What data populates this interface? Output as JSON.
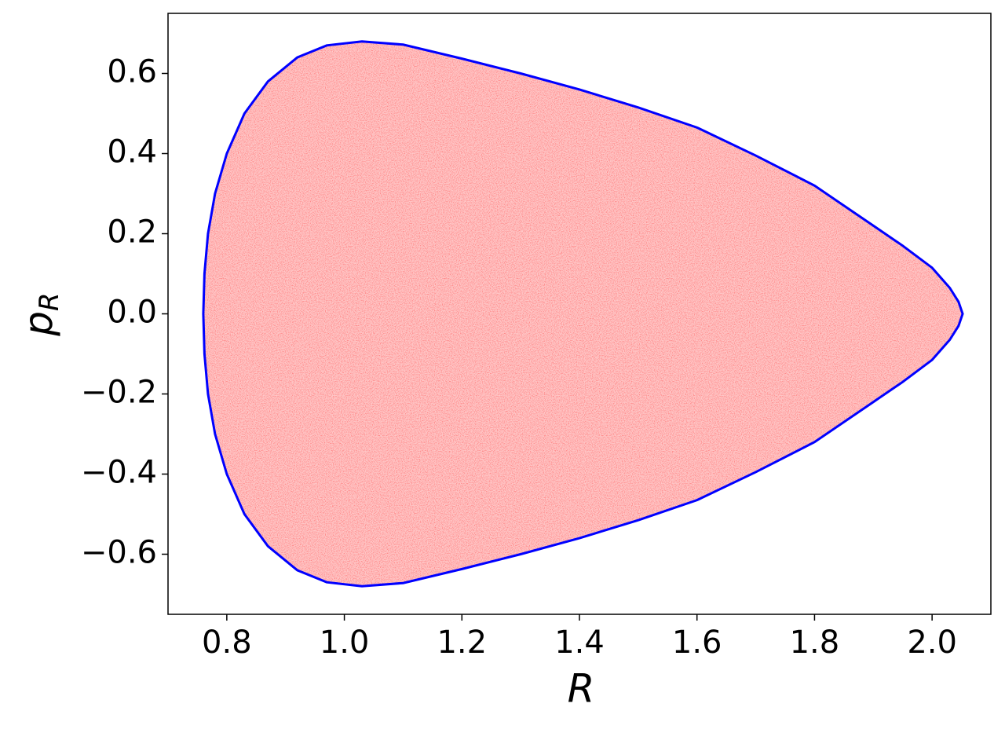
{
  "chart_data": {
    "type": "line",
    "xlabel": "R",
    "ylabel": "p",
    "ylabel_subscript": "R",
    "x": [
      0.76,
      0.762,
      0.768,
      0.78,
      0.8,
      0.83,
      0.87,
      0.92,
      0.97,
      1.03,
      1.1,
      1.2,
      1.3,
      1.4,
      1.5,
      1.6,
      1.7,
      1.8,
      1.9,
      1.95,
      2.0,
      2.03,
      2.045,
      2.052,
      2.045,
      2.03,
      2.0,
      1.95,
      1.9,
      1.8,
      1.7,
      1.6,
      1.5,
      1.4,
      1.3,
      1.2,
      1.1,
      1.03,
      0.97,
      0.92,
      0.87,
      0.83,
      0.8,
      0.78,
      0.768,
      0.762,
      0.76
    ],
    "series": [
      {
        "color": "#0000ff",
        "fill_color": "#ff0000",
        "values": [
          0,
          0.1,
          0.2,
          0.3,
          0.4,
          0.5,
          0.58,
          0.64,
          0.67,
          0.68,
          0.672,
          0.637,
          0.6,
          0.56,
          0.515,
          0.465,
          0.395,
          0.32,
          0.22,
          0.17,
          0.115,
          0.065,
          0.03,
          0,
          -0.03,
          -0.065,
          -0.115,
          -0.17,
          -0.22,
          -0.32,
          -0.395,
          -0.465,
          -0.515,
          -0.56,
          -0.6,
          -0.637,
          -0.672,
          -0.68,
          -0.67,
          -0.64,
          -0.58,
          -0.5,
          -0.4,
          -0.3,
          -0.2,
          -0.1,
          0
        ]
      }
    ],
    "xlim": [
      0.7,
      2.1
    ],
    "ylim": [
      -0.75,
      0.75
    ],
    "xticks": [
      0.8,
      {
        "value": 1.0,
        "label": "1.0"
      },
      1.2,
      1.4,
      1.6,
      1.8,
      {
        "value": 2.0,
        "label": "2.0"
      }
    ],
    "yticks": [
      {
        "value": -0.6,
        "label": "−0.6"
      },
      {
        "value": -0.4,
        "label": "−0.4"
      },
      {
        "value": -0.2,
        "label": "−0.2"
      },
      {
        "value": 0.0,
        "label": "0.0"
      },
      0.2,
      0.4,
      0.6
    ],
    "grid": false
  }
}
